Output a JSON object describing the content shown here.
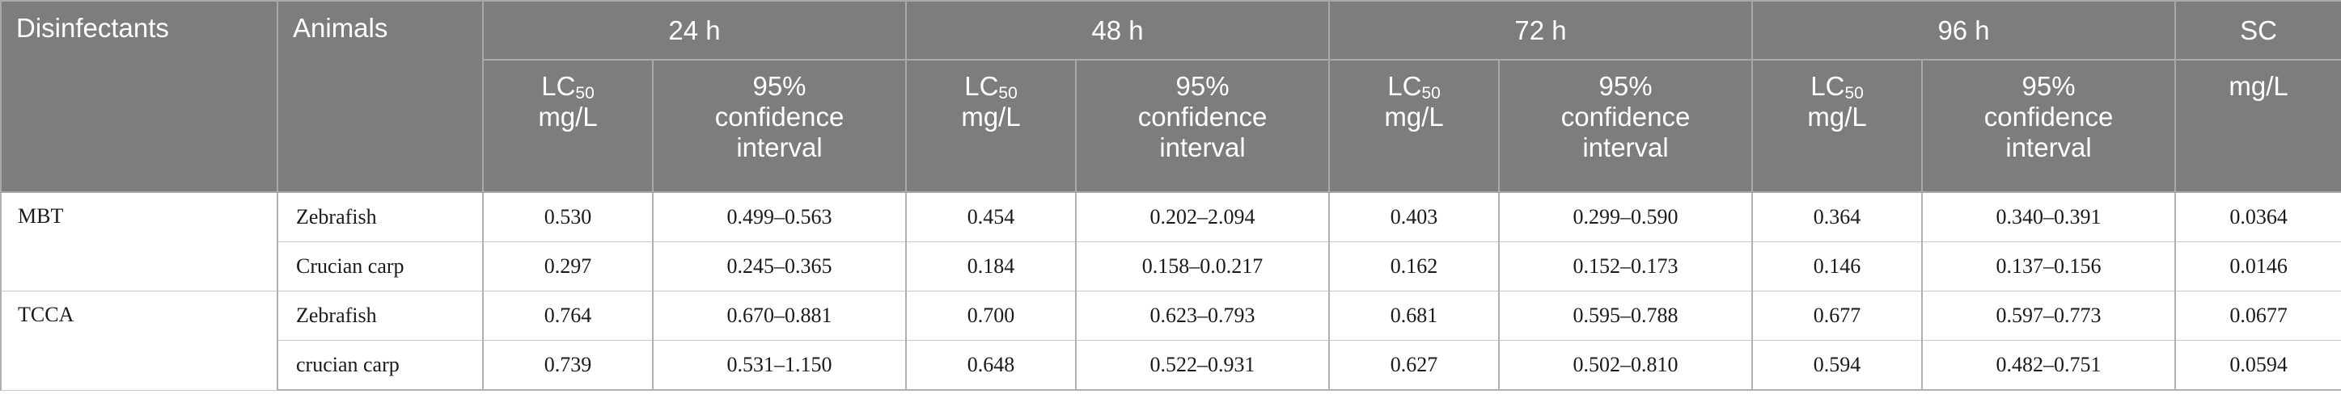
{
  "header": {
    "disinfectants": "Disinfectants",
    "animals": "Animals",
    "h24": "24 h",
    "h48": "48 h",
    "h72": "72 h",
    "h96": "96 h",
    "sc": "SC",
    "lc_prefix": "LC",
    "lc_sub": "50",
    "lc_unit": "mg/L",
    "ci_line1": "95%",
    "ci_line2": "confidence",
    "ci_line3": "interval",
    "sc_unit": "mg/L"
  },
  "groups": [
    {
      "name": "MBT",
      "rows": [
        {
          "animal": "Zebrafish",
          "lc24": "0.530",
          "ci24": "0.499–0.563",
          "lc48": "0.454",
          "ci48": "0.202–2.094",
          "lc72": "0.403",
          "ci72": "0.299–0.590",
          "lc96": "0.364",
          "ci96": "0.340–0.391",
          "sc": "0.0364"
        },
        {
          "animal": "Crucian carp",
          "lc24": "0.297",
          "ci24": "0.245–0.365",
          "lc48": "0.184",
          "ci48": "0.158–0.0.217",
          "lc72": "0.162",
          "ci72": "0.152–0.173",
          "lc96": "0.146",
          "ci96": "0.137–0.156",
          "sc": "0.0146"
        }
      ]
    },
    {
      "name": "TCCA",
      "rows": [
        {
          "animal": "Zebrafish",
          "lc24": "0.764",
          "ci24": "0.670–0.881",
          "lc48": "0.700",
          "ci48": "0.623–0.793",
          "lc72": "0.681",
          "ci72": "0.595–0.788",
          "lc96": "0.677",
          "ci96": "0.597–0.773",
          "sc": "0.0677"
        },
        {
          "animal": "crucian carp",
          "lc24": "0.739",
          "ci24": "0.531–1.150",
          "lc48": "0.648",
          "ci48": "0.522–0.931",
          "lc72": "0.627",
          "ci72": "0.502–0.810",
          "lc96": "0.594",
          "ci96": "0.482–0.751",
          "sc": "0.0594"
        }
      ]
    }
  ]
}
